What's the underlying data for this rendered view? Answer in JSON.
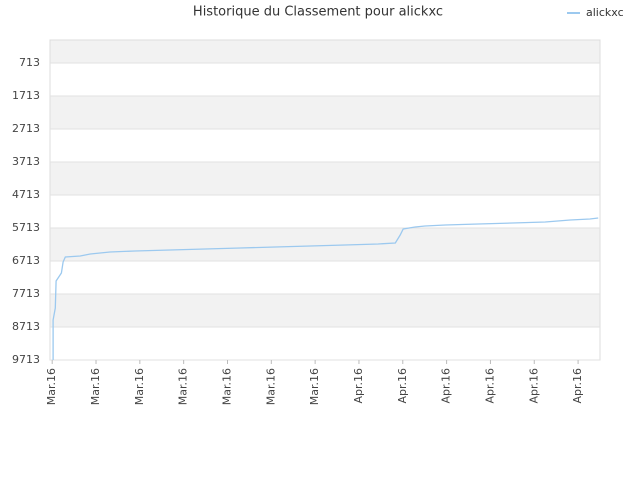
{
  "chart_data": {
    "type": "line",
    "title": "Historique du Classement pour alickxc",
    "x": [
      0.02,
      0.02,
      0.07,
      0.09,
      0.21,
      0.25,
      0.3,
      0.64,
      0.87,
      1.32,
      1.89,
      2.69,
      3.49,
      4.29,
      5.09,
      5.89,
      6.68,
      7.44,
      7.83,
      7.94,
      8.01,
      8.28,
      8.51,
      8.97,
      9.72,
      10.5,
      11.25,
      11.82,
      12.27,
      12.46
    ],
    "series": [
      {
        "name": "alickxc",
        "color": "#9cc9ef",
        "values": [
          9713,
          8501,
          8137,
          7319,
          7076,
          6743,
          6592,
          6561,
          6501,
          6440,
          6410,
          6380,
          6349,
          6319,
          6289,
          6258,
          6228,
          6198,
          6167,
          5925,
          5743,
          5683,
          5652,
          5622,
          5592,
          5561,
          5531,
          5470,
          5440,
          5410
        ]
      }
    ],
    "xlim": [
      -0.05,
      12.5
    ],
    "xticks": [
      {
        "value": 0,
        "label": "Mar.16"
      },
      {
        "value": 1,
        "label": "Mar.16"
      },
      {
        "value": 2,
        "label": "Mar.16"
      },
      {
        "value": 3,
        "label": "Mar.16"
      },
      {
        "value": 4,
        "label": "Mar.16"
      },
      {
        "value": 5,
        "label": "Mar.16"
      },
      {
        "value": 6,
        "label": "Mar.16"
      },
      {
        "value": 7,
        "label": "Apr.16"
      },
      {
        "value": 8,
        "label": "Apr.16"
      },
      {
        "value": 9,
        "label": "Apr.16"
      },
      {
        "value": 10,
        "label": "Apr.16"
      },
      {
        "value": 11,
        "label": "Apr.16"
      },
      {
        "value": 12,
        "label": "Apr.16"
      }
    ],
    "ylim": [
      9713,
      16
    ],
    "yticks": [
      713,
      1713,
      2713,
      3713,
      4713,
      5713,
      6713,
      7713,
      8713,
      9713
    ],
    "grid": true,
    "legend": "top-right"
  }
}
